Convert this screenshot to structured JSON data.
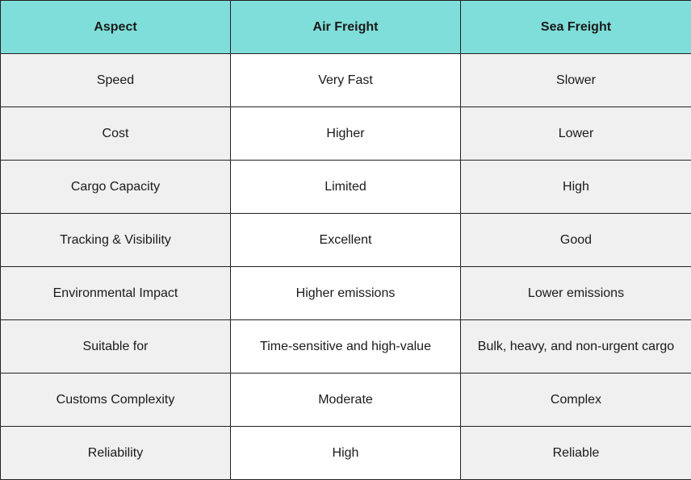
{
  "table": {
    "headers": [
      "Aspect",
      "Air Freight",
      "Sea Freight"
    ],
    "rows": [
      [
        "Speed",
        "Very Fast",
        "Slower"
      ],
      [
        "Cost",
        "Higher",
        "Lower"
      ],
      [
        "Cargo Capacity",
        "Limited",
        "High"
      ],
      [
        "Tracking & Visibility",
        "Excellent",
        "Good"
      ],
      [
        "Environmental Impact",
        "Higher emissions",
        "Lower emissions"
      ],
      [
        "Suitable for",
        "Time-sensitive and high-value",
        "Bulk, heavy, and non-urgent cargo"
      ],
      [
        "Customs Complexity",
        "Moderate",
        "Complex"
      ],
      [
        "Reliability",
        "High",
        "Reliable"
      ]
    ]
  },
  "colors": {
    "header_background": "#7fded9",
    "shaded_cell": "#f0f0f0",
    "plain_cell": "#ffffff",
    "border": "#222222"
  }
}
